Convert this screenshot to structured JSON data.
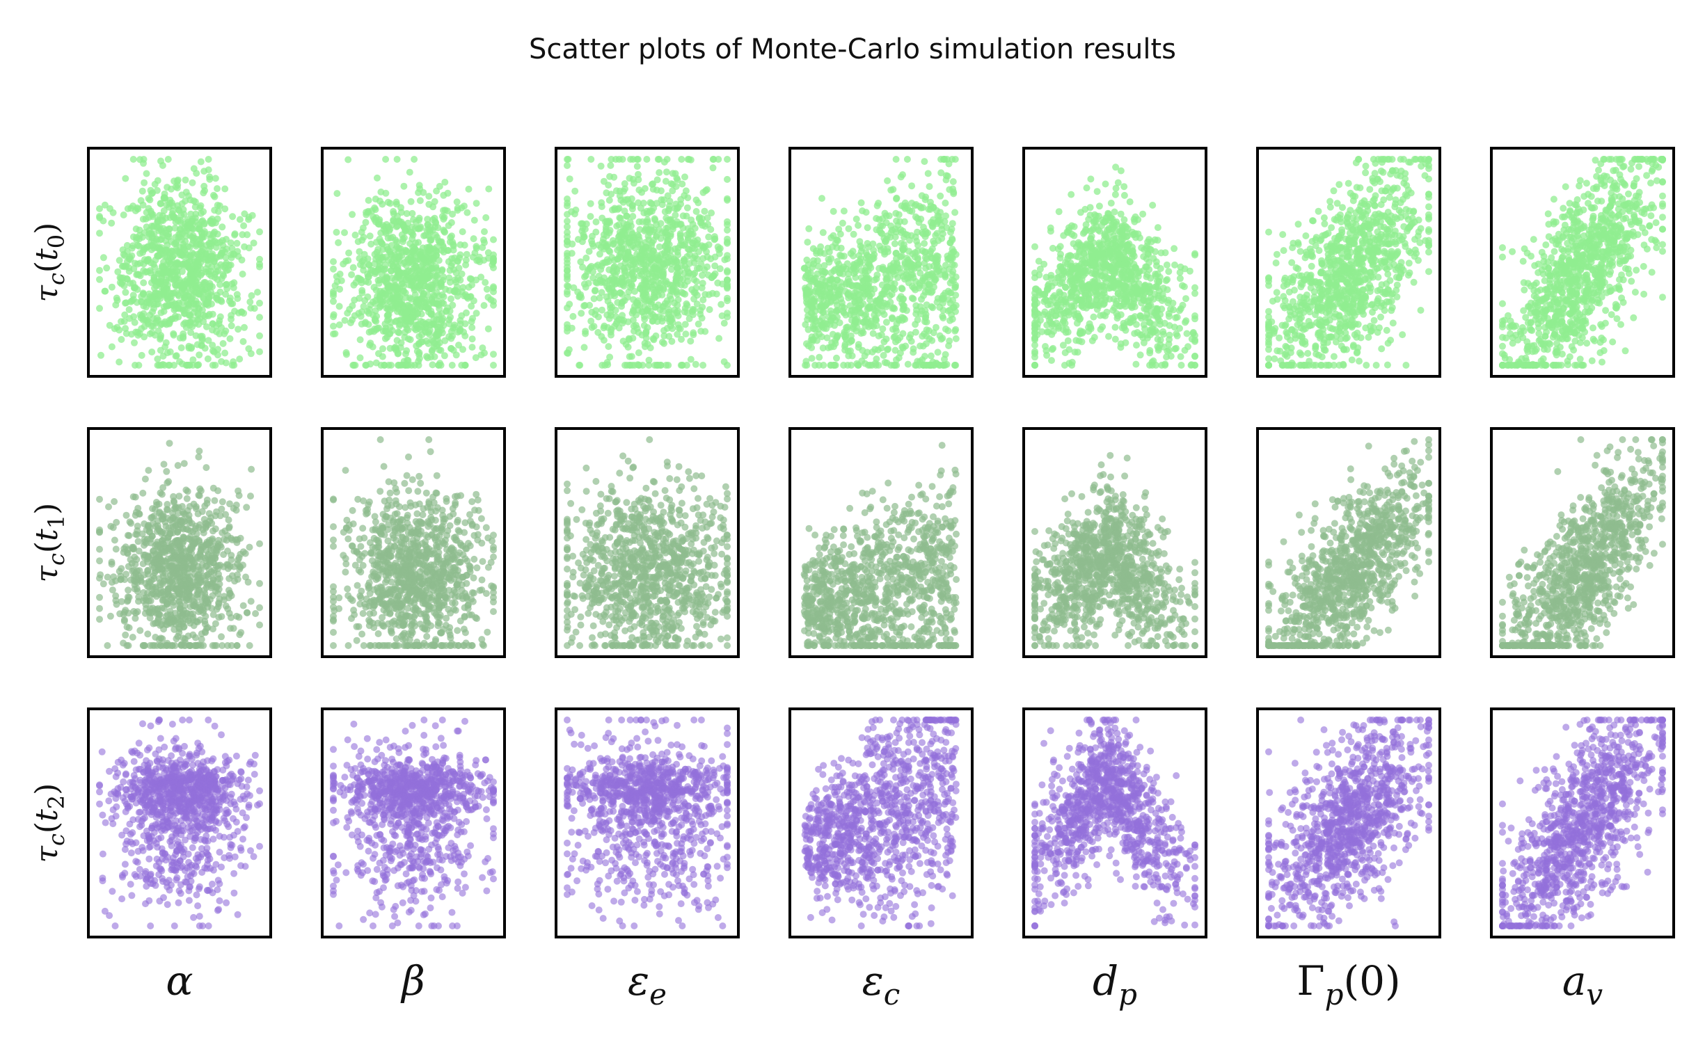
{
  "title": "Scatter plots of Monte-Carlo simulation results",
  "rows": [
    {
      "label": "τc(t0)",
      "sym": "τ",
      "sub": "c",
      "arg_sym": "t",
      "arg_sub": "0",
      "color": "#90EE90",
      "opacity": 0.75
    },
    {
      "label": "τc(t1)",
      "sym": "τ",
      "sub": "c",
      "arg_sym": "t",
      "arg_sub": "1",
      "color": "#8FBC8F",
      "opacity": 0.7
    },
    {
      "label": "τc(t2)",
      "sym": "τ",
      "sub": "c",
      "arg_sym": "t",
      "arg_sub": "2",
      "color": "#9370DB",
      "opacity": 0.6
    }
  ],
  "columns": [
    {
      "label": "α",
      "main": "α",
      "sub": "",
      "suffix": ""
    },
    {
      "label": "β",
      "main": "β",
      "sub": "",
      "suffix": ""
    },
    {
      "label": "εe",
      "main": "ε",
      "sub": "e",
      "suffix": ""
    },
    {
      "label": "εc",
      "main": "ε",
      "sub": "c",
      "suffix": ""
    },
    {
      "label": "dp",
      "main": "d",
      "sub": "p",
      "suffix": ""
    },
    {
      "label": "Γp(0)",
      "main": "Γ",
      "sub": "p",
      "suffix": "(0)"
    },
    {
      "label": "av",
      "main": "a",
      "sub": "v",
      "suffix": ""
    }
  ],
  "chart_data": {
    "type": "scatter",
    "title": "Scatter plots of Monte-Carlo simulation results",
    "grid": false,
    "legend": "none",
    "x_ticks": "none",
    "y_ticks": "none",
    "n_points_per_panel": 1000,
    "x_range": [
      0,
      1
    ],
    "y_range": [
      0,
      1
    ],
    "panels": [
      {
        "row": "τc(t0)",
        "col": "α",
        "pattern": "uniform",
        "mx": 0.5,
        "my": 0.45,
        "sx": 0.2,
        "sy": 0.22,
        "corr": 0.0
      },
      {
        "row": "τc(t0)",
        "col": "β",
        "pattern": "uniform",
        "mx": 0.5,
        "my": 0.4,
        "sx": 0.22,
        "sy": 0.22,
        "corr": -0.1
      },
      {
        "row": "τc(t0)",
        "col": "εe",
        "pattern": "uniform",
        "mx": 0.5,
        "my": 0.5,
        "sx": 0.26,
        "sy": 0.24,
        "corr": 0.0
      },
      {
        "row": "τc(t0)",
        "col": "εc",
        "pattern": "fan",
        "mx": 0.45,
        "my": 0.45,
        "sx": 0.25,
        "sy": 0.22,
        "corr": 0.15
      },
      {
        "row": "τc(t0)",
        "col": "dp",
        "pattern": "peak",
        "mx": 0.45,
        "my": 0.4,
        "sx": 0.25,
        "sy": 0.2,
        "corr": 0.0
      },
      {
        "row": "τc(t0)",
        "col": "Γp(0)",
        "pattern": "linear",
        "mx": 0.5,
        "my": 0.45,
        "sx": 0.25,
        "sy": 0.2,
        "corr": 0.45
      },
      {
        "row": "τc(t0)",
        "col": "av",
        "pattern": "linear",
        "mx": 0.5,
        "my": 0.45,
        "sx": 0.25,
        "sy": 0.2,
        "corr": 0.6
      },
      {
        "row": "τc(t1)",
        "col": "α",
        "pattern": "uniform",
        "mx": 0.5,
        "my": 0.35,
        "sx": 0.2,
        "sy": 0.2,
        "corr": 0.0
      },
      {
        "row": "τc(t1)",
        "col": "β",
        "pattern": "uniform",
        "mx": 0.5,
        "my": 0.35,
        "sx": 0.22,
        "sy": 0.2,
        "corr": 0.0
      },
      {
        "row": "τc(t1)",
        "col": "εe",
        "pattern": "uniform",
        "mx": 0.5,
        "my": 0.35,
        "sx": 0.26,
        "sy": 0.2,
        "corr": 0.0
      },
      {
        "row": "τc(t1)",
        "col": "εc",
        "pattern": "fan",
        "mx": 0.45,
        "my": 0.35,
        "sx": 0.25,
        "sy": 0.2,
        "corr": 0.15
      },
      {
        "row": "τc(t1)",
        "col": "dp",
        "pattern": "peak",
        "mx": 0.45,
        "my": 0.35,
        "sx": 0.25,
        "sy": 0.2,
        "corr": 0.0
      },
      {
        "row": "τc(t1)",
        "col": "Γp(0)",
        "pattern": "linear",
        "mx": 0.5,
        "my": 0.35,
        "sx": 0.25,
        "sy": 0.18,
        "corr": 0.5
      },
      {
        "row": "τc(t1)",
        "col": "av",
        "pattern": "linear",
        "mx": 0.5,
        "my": 0.35,
        "sx": 0.25,
        "sy": 0.18,
        "corr": 0.6
      },
      {
        "row": "τc(t2)",
        "col": "α",
        "pattern": "cluster",
        "mx": 0.5,
        "my": 0.55,
        "sx": 0.2,
        "sy": 0.22,
        "corr": 0.0
      },
      {
        "row": "τc(t2)",
        "col": "β",
        "pattern": "cluster",
        "mx": 0.5,
        "my": 0.55,
        "sx": 0.22,
        "sy": 0.22,
        "corr": 0.0
      },
      {
        "row": "τc(t2)",
        "col": "εe",
        "pattern": "cluster",
        "mx": 0.5,
        "my": 0.55,
        "sx": 0.26,
        "sy": 0.22,
        "corr": 0.0
      },
      {
        "row": "τc(t2)",
        "col": "εc",
        "pattern": "fan",
        "mx": 0.4,
        "my": 0.5,
        "sx": 0.25,
        "sy": 0.22,
        "corr": 0.35
      },
      {
        "row": "τc(t2)",
        "col": "dp",
        "pattern": "peak",
        "mx": 0.45,
        "my": 0.55,
        "sx": 0.25,
        "sy": 0.2,
        "corr": 0.0
      },
      {
        "row": "τc(t2)",
        "col": "Γp(0)",
        "pattern": "linear",
        "mx": 0.5,
        "my": 0.5,
        "sx": 0.25,
        "sy": 0.2,
        "corr": 0.45
      },
      {
        "row": "τc(t2)",
        "col": "av",
        "pattern": "linear",
        "mx": 0.5,
        "my": 0.5,
        "sx": 0.25,
        "sy": 0.2,
        "corr": 0.6
      }
    ]
  }
}
